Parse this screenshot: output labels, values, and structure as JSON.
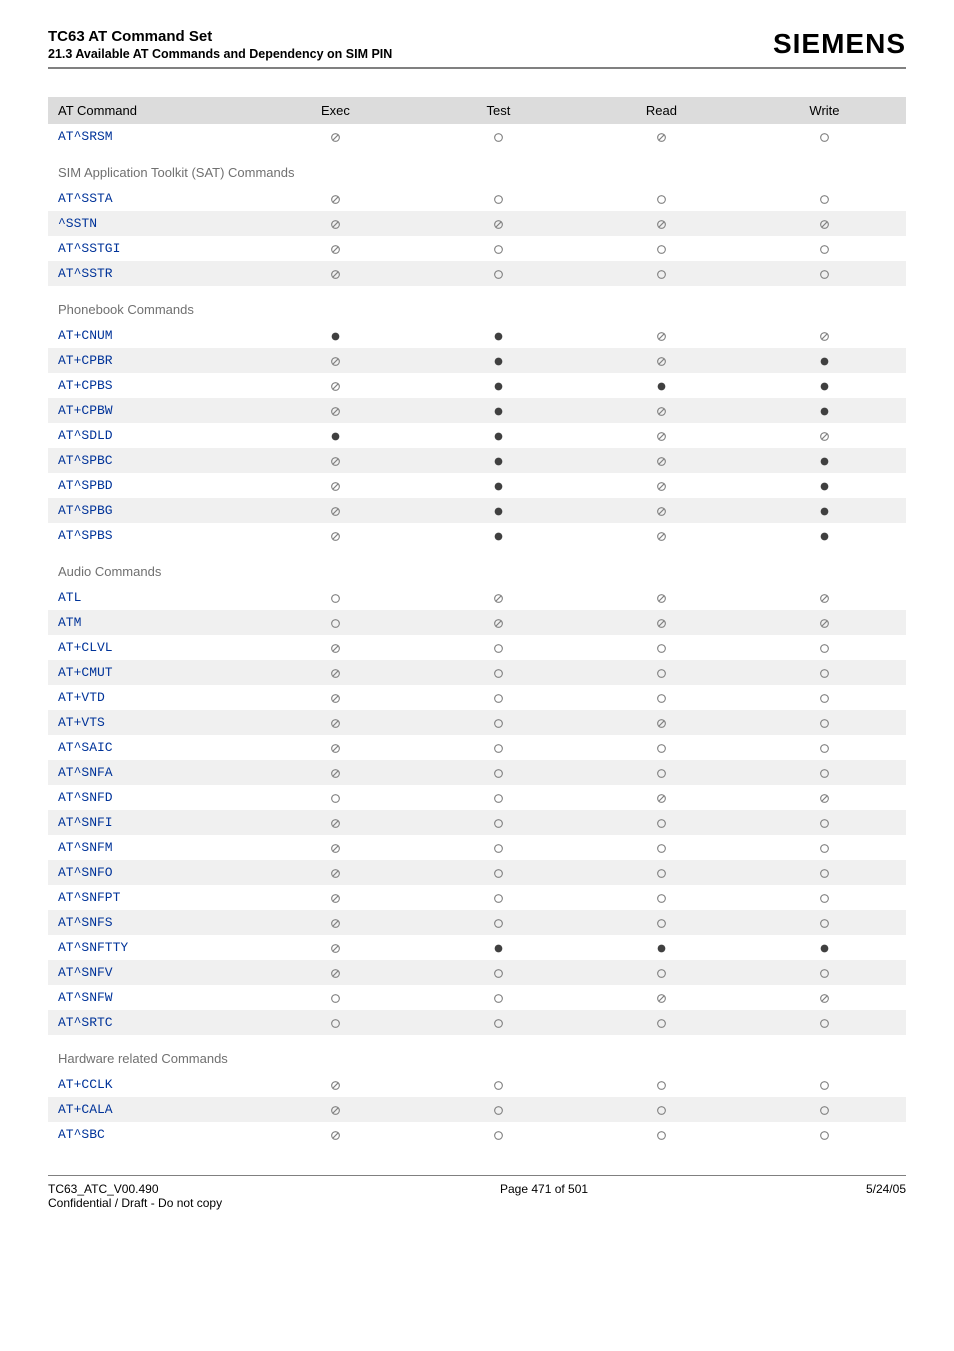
{
  "header": {
    "title": "TC63 AT Command Set",
    "subtitle": "21.3 Available AT Commands and Dependency on SIM PIN",
    "brand": "SIEMENS"
  },
  "table": {
    "columns": [
      "AT Command",
      "Exec",
      "Test",
      "Read",
      "Write"
    ],
    "symbols": {
      "filled": {
        "shape": "circle-filled",
        "color": "#404040"
      },
      "outline": {
        "shape": "circle-outline",
        "color": "#808080"
      },
      "slashed": {
        "shape": "circle-slashed",
        "color": "#808080"
      }
    },
    "sections": [
      {
        "title": null,
        "rows": [
          {
            "cmd": "AT^SRSM",
            "cells": [
              "slashed",
              "outline",
              "slashed",
              "outline"
            ],
            "alt": false
          }
        ]
      },
      {
        "title": "SIM Application Toolkit (SAT) Commands",
        "rows": [
          {
            "cmd": "AT^SSTA",
            "cells": [
              "slashed",
              "outline",
              "outline",
              "outline"
            ],
            "alt": false
          },
          {
            "cmd": "^SSTN",
            "cells": [
              "slashed",
              "slashed",
              "slashed",
              "slashed"
            ],
            "alt": true
          },
          {
            "cmd": "AT^SSTGI",
            "cells": [
              "slashed",
              "outline",
              "outline",
              "outline"
            ],
            "alt": false
          },
          {
            "cmd": "AT^SSTR",
            "cells": [
              "slashed",
              "outline",
              "outline",
              "outline"
            ],
            "alt": true
          }
        ]
      },
      {
        "title": "Phonebook Commands",
        "rows": [
          {
            "cmd": "AT+CNUM",
            "cells": [
              "filled",
              "filled",
              "slashed",
              "slashed"
            ],
            "alt": false
          },
          {
            "cmd": "AT+CPBR",
            "cells": [
              "slashed",
              "filled",
              "slashed",
              "filled"
            ],
            "alt": true
          },
          {
            "cmd": "AT+CPBS",
            "cells": [
              "slashed",
              "filled",
              "filled",
              "filled"
            ],
            "alt": false
          },
          {
            "cmd": "AT+CPBW",
            "cells": [
              "slashed",
              "filled",
              "slashed",
              "filled"
            ],
            "alt": true
          },
          {
            "cmd": "AT^SDLD",
            "cells": [
              "filled",
              "filled",
              "slashed",
              "slashed"
            ],
            "alt": false
          },
          {
            "cmd": "AT^SPBC",
            "cells": [
              "slashed",
              "filled",
              "slashed",
              "filled"
            ],
            "alt": true
          },
          {
            "cmd": "AT^SPBD",
            "cells": [
              "slashed",
              "filled",
              "slashed",
              "filled"
            ],
            "alt": false
          },
          {
            "cmd": "AT^SPBG",
            "cells": [
              "slashed",
              "filled",
              "slashed",
              "filled"
            ],
            "alt": true
          },
          {
            "cmd": "AT^SPBS",
            "cells": [
              "slashed",
              "filled",
              "slashed",
              "filled"
            ],
            "alt": false
          }
        ]
      },
      {
        "title": "Audio Commands",
        "rows": [
          {
            "cmd": "ATL",
            "cells": [
              "outline",
              "slashed",
              "slashed",
              "slashed"
            ],
            "alt": false
          },
          {
            "cmd": "ATM",
            "cells": [
              "outline",
              "slashed",
              "slashed",
              "slashed"
            ],
            "alt": true
          },
          {
            "cmd": "AT+CLVL",
            "cells": [
              "slashed",
              "outline",
              "outline",
              "outline"
            ],
            "alt": false
          },
          {
            "cmd": "AT+CMUT",
            "cells": [
              "slashed",
              "outline",
              "outline",
              "outline"
            ],
            "alt": true
          },
          {
            "cmd": "AT+VTD",
            "cells": [
              "slashed",
              "outline",
              "outline",
              "outline"
            ],
            "alt": false
          },
          {
            "cmd": "AT+VTS",
            "cells": [
              "slashed",
              "outline",
              "slashed",
              "outline"
            ],
            "alt": true
          },
          {
            "cmd": "AT^SAIC",
            "cells": [
              "slashed",
              "outline",
              "outline",
              "outline"
            ],
            "alt": false
          },
          {
            "cmd": "AT^SNFA",
            "cells": [
              "slashed",
              "outline",
              "outline",
              "outline"
            ],
            "alt": true
          },
          {
            "cmd": "AT^SNFD",
            "cells": [
              "outline",
              "outline",
              "slashed",
              "slashed"
            ],
            "alt": false
          },
          {
            "cmd": "AT^SNFI",
            "cells": [
              "slashed",
              "outline",
              "outline",
              "outline"
            ],
            "alt": true
          },
          {
            "cmd": "AT^SNFM",
            "cells": [
              "slashed",
              "outline",
              "outline",
              "outline"
            ],
            "alt": false
          },
          {
            "cmd": "AT^SNFO",
            "cells": [
              "slashed",
              "outline",
              "outline",
              "outline"
            ],
            "alt": true
          },
          {
            "cmd": "AT^SNFPT",
            "cells": [
              "slashed",
              "outline",
              "outline",
              "outline"
            ],
            "alt": false
          },
          {
            "cmd": "AT^SNFS",
            "cells": [
              "slashed",
              "outline",
              "outline",
              "outline"
            ],
            "alt": true
          },
          {
            "cmd": "AT^SNFTTY",
            "cells": [
              "slashed",
              "filled",
              "filled",
              "filled"
            ],
            "alt": false
          },
          {
            "cmd": "AT^SNFV",
            "cells": [
              "slashed",
              "outline",
              "outline",
              "outline"
            ],
            "alt": true
          },
          {
            "cmd": "AT^SNFW",
            "cells": [
              "outline",
              "outline",
              "slashed",
              "slashed"
            ],
            "alt": false
          },
          {
            "cmd": "AT^SRTC",
            "cells": [
              "outline",
              "outline",
              "outline",
              "outline"
            ],
            "alt": true
          }
        ]
      },
      {
        "title": "Hardware related Commands",
        "rows": [
          {
            "cmd": "AT+CCLK",
            "cells": [
              "slashed",
              "outline",
              "outline",
              "outline"
            ],
            "alt": false
          },
          {
            "cmd": "AT+CALA",
            "cells": [
              "slashed",
              "outline",
              "outline",
              "outline"
            ],
            "alt": true
          },
          {
            "cmd": "AT^SBC",
            "cells": [
              "slashed",
              "outline",
              "outline",
              "outline"
            ],
            "alt": false
          }
        ]
      }
    ]
  },
  "footer": {
    "left": "TC63_ATC_V00.490",
    "left2": "Confidential / Draft - Do not copy",
    "center": "Page 471 of 501",
    "right": "5/24/05"
  }
}
